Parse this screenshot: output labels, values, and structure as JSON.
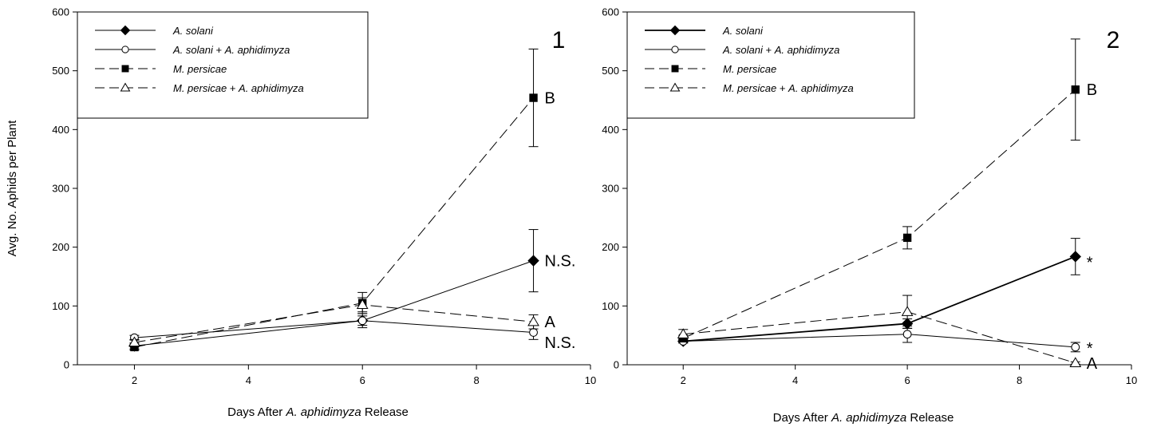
{
  "chart_data": [
    {
      "type": "line",
      "panel_label": "1",
      "xlabel_parts": [
        "Days After ",
        "A. aphidimyza",
        " Release"
      ],
      "ylabel": "Avg. No. Aphids per Plant",
      "xlim": [
        1,
        10
      ],
      "ylim": [
        0,
        600
      ],
      "xticks": [
        2,
        4,
        6,
        8,
        10
      ],
      "yticks": [
        0,
        100,
        200,
        300,
        400,
        500,
        600
      ],
      "grid": false,
      "legend_position": "top-left",
      "x": [
        2,
        6,
        9
      ],
      "series": [
        {
          "name": "A. solani",
          "marker": "diamond-filled",
          "dash": "solid",
          "values": [
            32,
            75,
            177
          ],
          "errors": [
            5,
            12,
            53
          ]
        },
        {
          "name": "A. solani + A. aphidimyza",
          "marker": "circle-open",
          "dash": "solid",
          "values": [
            46,
            75,
            55
          ],
          "errors": [
            4,
            8,
            12
          ]
        },
        {
          "name": "M. persicae",
          "marker": "square-filled",
          "dash": "long-dash",
          "values": [
            30,
            105,
            454
          ],
          "errors": [
            5,
            18,
            83
          ]
        },
        {
          "name": "M. persicae + A. aphidimyza",
          "marker": "triangle-open",
          "dash": "long-dash",
          "values": [
            38,
            102,
            73
          ],
          "errors": [
            5,
            12,
            12
          ]
        }
      ],
      "annotations": [
        {
          "text": "B",
          "x": 9,
          "y": 454
        },
        {
          "text": "N.S.",
          "x": 9,
          "y": 177
        },
        {
          "text": "A",
          "x": 9,
          "y": 73
        },
        {
          "text": "N.S.",
          "x": 9,
          "y": 38
        }
      ]
    },
    {
      "type": "line",
      "panel_label": "2",
      "xlabel_parts": [
        "Days After ",
        "A. aphidimyza",
        " Release"
      ],
      "ylabel": "",
      "xlim": [
        1,
        10
      ],
      "ylim": [
        0,
        600
      ],
      "xticks": [
        2,
        4,
        6,
        8,
        10
      ],
      "yticks": [
        0,
        100,
        200,
        300,
        400,
        500,
        600
      ],
      "grid": false,
      "legend_position": "top-left",
      "x": [
        2,
        6,
        9
      ],
      "series": [
        {
          "name": "A. solani",
          "marker": "diamond-filled",
          "dash": "solid",
          "values": [
            40,
            70,
            184
          ],
          "errors": [
            3,
            8,
            31
          ]
        },
        {
          "name": "A. solani + A. aphidimyza",
          "marker": "circle-open",
          "dash": "solid",
          "values": [
            40,
            52,
            30
          ],
          "errors": [
            3,
            14,
            8
          ]
        },
        {
          "name": "M. persicae",
          "marker": "square-filled",
          "dash": "long-dash",
          "values": [
            45,
            216,
            468
          ],
          "errors": [
            5,
            19,
            86
          ]
        },
        {
          "name": "M. persicae + A. aphidimyza",
          "marker": "triangle-open",
          "dash": "long-dash",
          "values": [
            52,
            90,
            3
          ],
          "errors": [
            8,
            28,
            2
          ]
        }
      ],
      "annotations": [
        {
          "text": "B",
          "x": 9,
          "y": 468
        },
        {
          "text": "*",
          "x": 9,
          "y": 184
        },
        {
          "text": "*",
          "x": 9,
          "y": 38
        },
        {
          "text": "A",
          "x": 9,
          "y": 3
        }
      ]
    }
  ]
}
